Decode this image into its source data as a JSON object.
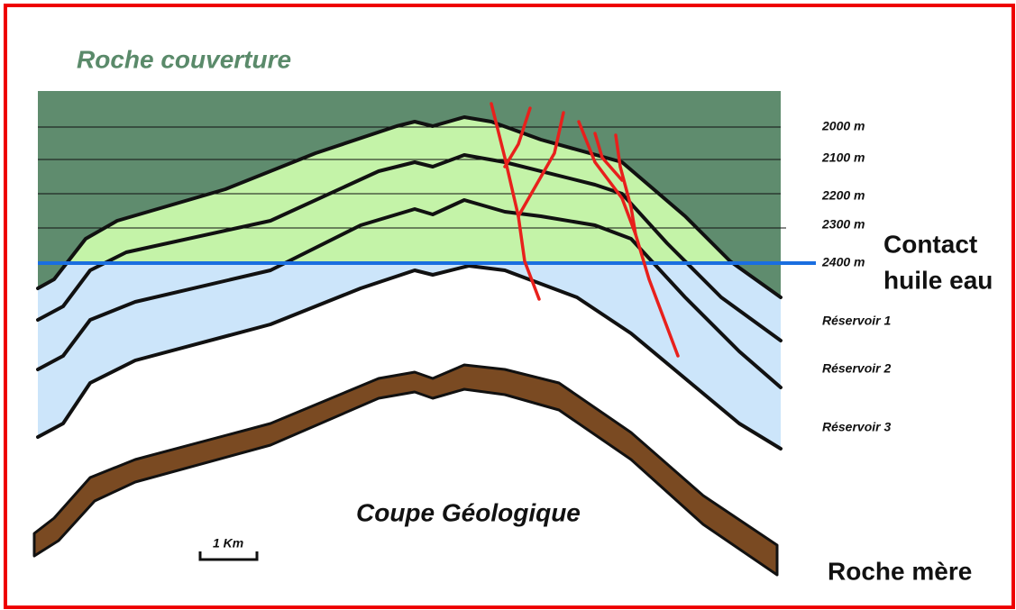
{
  "title": "Roche couverture",
  "depth_labels": [
    "2000 m",
    "2100 m",
    "2200 m",
    "2300 m",
    "2400 m"
  ],
  "contact": [
    "Contact",
    "huile eau"
  ],
  "reservoirs": [
    "Réservoir 1",
    "Réservoir 2",
    "Réservoir 3"
  ],
  "caption": "Coupe Géologique",
  "scale": "1 Km",
  "source_rock": "Roche mère"
}
